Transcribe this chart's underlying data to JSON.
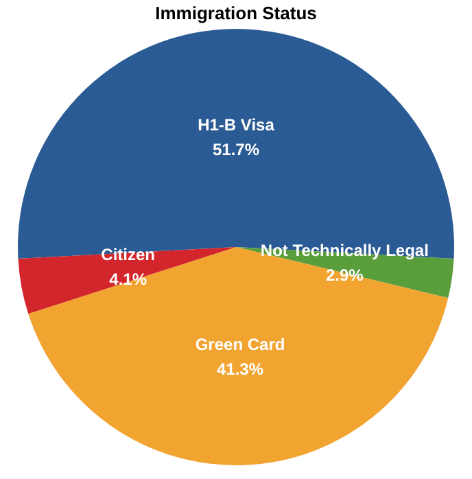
{
  "chart_data": {
    "type": "pie",
    "title": "Immigration Status",
    "categories": [
      "H1-B Visa",
      "Not Technically Legal",
      "Green Card",
      "Citizen"
    ],
    "values": [
      51.7,
      2.9,
      41.3,
      4.1
    ],
    "value_labels": [
      "51.7%",
      "2.9%",
      "41.3%",
      "4.1%"
    ],
    "colors": [
      "#2b5b94",
      "#5a9e3c",
      "#f2a431",
      "#d3262c"
    ]
  }
}
